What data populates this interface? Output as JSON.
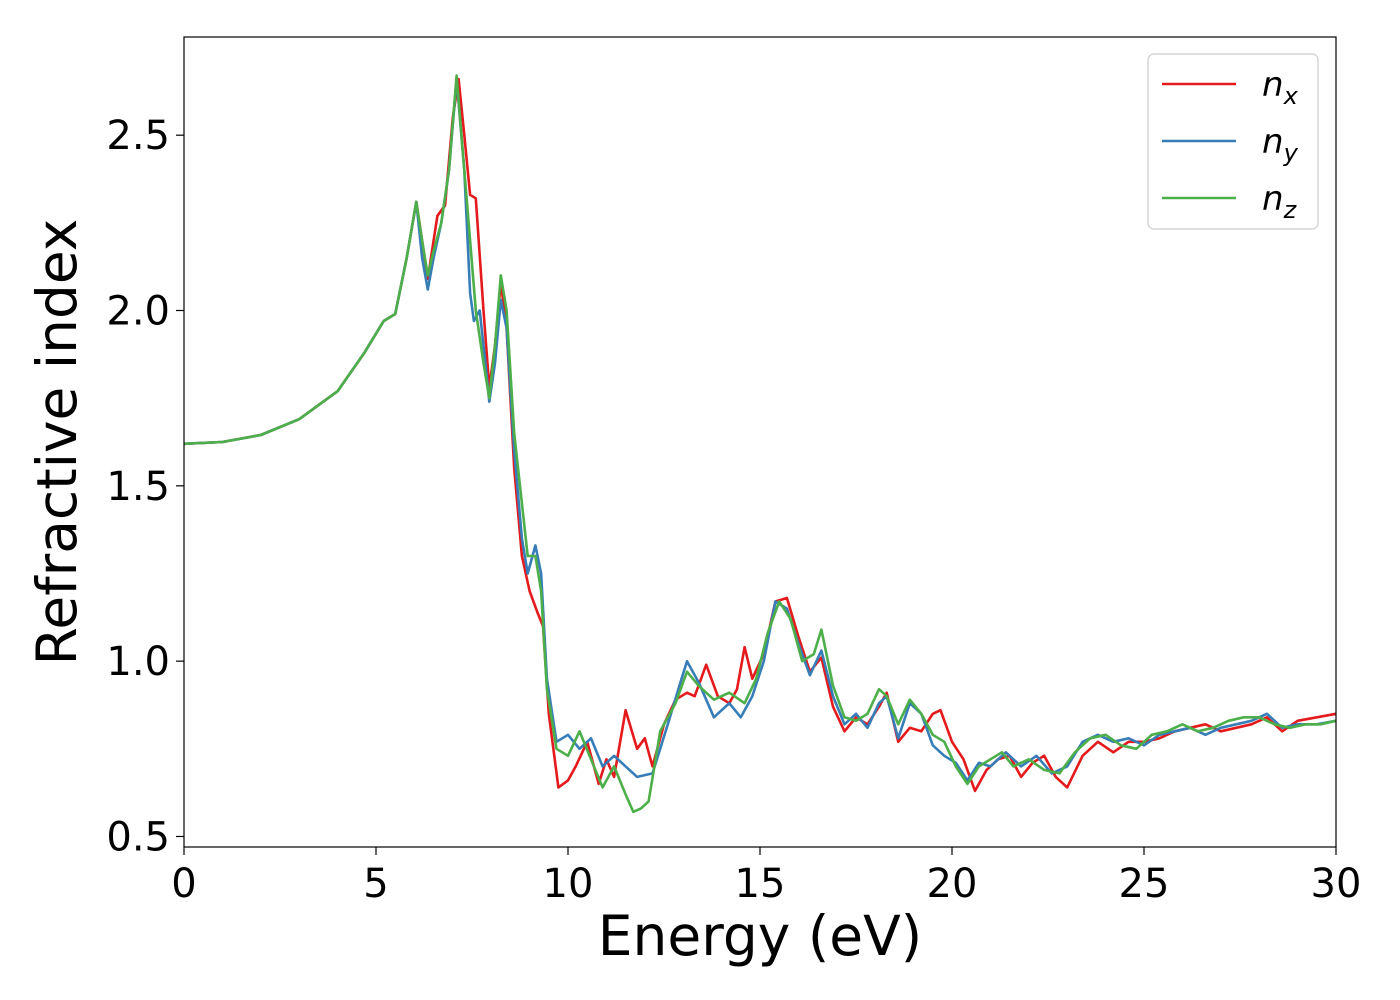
{
  "chart_data": {
    "type": "line",
    "xlabel": "Energy (eV)",
    "ylabel": "Refractive index",
    "xlim": [
      0,
      30
    ],
    "ylim": [
      0.47,
      2.78
    ],
    "xticks": [
      0,
      5,
      10,
      15,
      20,
      25,
      30
    ],
    "xtick_labels": [
      "0",
      "5",
      "10",
      "15",
      "20",
      "25",
      "30"
    ],
    "yticks": [
      0.5,
      1.0,
      1.5,
      2.0,
      2.5
    ],
    "ytick_labels": [
      "0.5",
      "1.0",
      "1.5",
      "2.0",
      "2.5"
    ],
    "grid": false,
    "legend_position": "top-right",
    "series": [
      {
        "name": "n",
        "sub": "x",
        "color": "#e41a1c",
        "points": [
          [
            0,
            1.62
          ],
          [
            1,
            1.625
          ],
          [
            2,
            1.645
          ],
          [
            3,
            1.69
          ],
          [
            4,
            1.77
          ],
          [
            4.7,
            1.88
          ],
          [
            5.2,
            1.97
          ],
          [
            5.5,
            1.99
          ],
          [
            5.8,
            2.15
          ],
          [
            6.05,
            2.31
          ],
          [
            6.2,
            2.2
          ],
          [
            6.35,
            2.09
          ],
          [
            6.5,
            2.2
          ],
          [
            6.6,
            2.27
          ],
          [
            6.8,
            2.3
          ],
          [
            7.0,
            2.55
          ],
          [
            7.15,
            2.66
          ],
          [
            7.3,
            2.5
          ],
          [
            7.45,
            2.33
          ],
          [
            7.6,
            2.32
          ],
          [
            7.8,
            2.0
          ],
          [
            7.95,
            1.78
          ],
          [
            8.1,
            1.9
          ],
          [
            8.25,
            2.08
          ],
          [
            8.4,
            1.95
          ],
          [
            8.6,
            1.55
          ],
          [
            8.8,
            1.3
          ],
          [
            9.0,
            1.2
          ],
          [
            9.2,
            1.14
          ],
          [
            9.35,
            1.1
          ],
          [
            9.5,
            0.85
          ],
          [
            9.75,
            0.64
          ],
          [
            10.0,
            0.66
          ],
          [
            10.2,
            0.7
          ],
          [
            10.5,
            0.77
          ],
          [
            10.8,
            0.65
          ],
          [
            11.0,
            0.72
          ],
          [
            11.2,
            0.67
          ],
          [
            11.5,
            0.86
          ],
          [
            11.8,
            0.75
          ],
          [
            12.0,
            0.78
          ],
          [
            12.2,
            0.7
          ],
          [
            12.5,
            0.82
          ],
          [
            12.8,
            0.89
          ],
          [
            13.1,
            0.91
          ],
          [
            13.3,
            0.9
          ],
          [
            13.6,
            0.99
          ],
          [
            13.9,
            0.9
          ],
          [
            14.2,
            0.88
          ],
          [
            14.4,
            0.92
          ],
          [
            14.6,
            1.04
          ],
          [
            14.8,
            0.95
          ],
          [
            15.1,
            1.02
          ],
          [
            15.4,
            1.17
          ],
          [
            15.7,
            1.18
          ],
          [
            16.0,
            1.07
          ],
          [
            16.3,
            0.97
          ],
          [
            16.6,
            1.01
          ],
          [
            16.9,
            0.87
          ],
          [
            17.2,
            0.8
          ],
          [
            17.5,
            0.84
          ],
          [
            17.8,
            0.82
          ],
          [
            18.1,
            0.87
          ],
          [
            18.3,
            0.91
          ],
          [
            18.6,
            0.77
          ],
          [
            18.9,
            0.81
          ],
          [
            19.2,
            0.8
          ],
          [
            19.5,
            0.85
          ],
          [
            19.7,
            0.86
          ],
          [
            20.0,
            0.77
          ],
          [
            20.3,
            0.72
          ],
          [
            20.6,
            0.63
          ],
          [
            20.9,
            0.69
          ],
          [
            21.2,
            0.72
          ],
          [
            21.5,
            0.73
          ],
          [
            21.8,
            0.67
          ],
          [
            22.1,
            0.71
          ],
          [
            22.4,
            0.73
          ],
          [
            22.7,
            0.67
          ],
          [
            23.0,
            0.64
          ],
          [
            23.4,
            0.73
          ],
          [
            23.8,
            0.77
          ],
          [
            24.2,
            0.74
          ],
          [
            24.6,
            0.77
          ],
          [
            25.0,
            0.77
          ],
          [
            25.4,
            0.78
          ],
          [
            25.8,
            0.8
          ],
          [
            26.2,
            0.81
          ],
          [
            26.6,
            0.82
          ],
          [
            27.0,
            0.8
          ],
          [
            27.4,
            0.81
          ],
          [
            27.8,
            0.82
          ],
          [
            28.2,
            0.84
          ],
          [
            28.6,
            0.8
          ],
          [
            29.0,
            0.83
          ],
          [
            29.5,
            0.84
          ],
          [
            30,
            0.85
          ]
        ]
      },
      {
        "name": "n",
        "sub": "y",
        "color": "#377eb8",
        "points": [
          [
            0,
            1.62
          ],
          [
            1,
            1.625
          ],
          [
            2,
            1.645
          ],
          [
            3,
            1.69
          ],
          [
            4,
            1.77
          ],
          [
            4.7,
            1.88
          ],
          [
            5.2,
            1.97
          ],
          [
            5.5,
            1.99
          ],
          [
            5.8,
            2.15
          ],
          [
            6.05,
            2.31
          ],
          [
            6.2,
            2.15
          ],
          [
            6.35,
            2.06
          ],
          [
            6.5,
            2.15
          ],
          [
            6.7,
            2.25
          ],
          [
            6.9,
            2.4
          ],
          [
            7.1,
            2.66
          ],
          [
            7.3,
            2.4
          ],
          [
            7.45,
            2.05
          ],
          [
            7.55,
            1.97
          ],
          [
            7.7,
            2.0
          ],
          [
            7.85,
            1.85
          ],
          [
            7.95,
            1.74
          ],
          [
            8.1,
            1.85
          ],
          [
            8.25,
            2.03
          ],
          [
            8.4,
            1.95
          ],
          [
            8.6,
            1.6
          ],
          [
            8.8,
            1.35
          ],
          [
            8.95,
            1.25
          ],
          [
            9.15,
            1.33
          ],
          [
            9.3,
            1.25
          ],
          [
            9.45,
            0.95
          ],
          [
            9.7,
            0.77
          ],
          [
            10.0,
            0.79
          ],
          [
            10.3,
            0.75
          ],
          [
            10.6,
            0.78
          ],
          [
            10.9,
            0.7
          ],
          [
            11.2,
            0.73
          ],
          [
            11.5,
            0.7
          ],
          [
            11.8,
            0.67
          ],
          [
            12.2,
            0.68
          ],
          [
            12.6,
            0.82
          ],
          [
            12.9,
            0.93
          ],
          [
            13.1,
            1.0
          ],
          [
            13.4,
            0.94
          ],
          [
            13.8,
            0.84
          ],
          [
            14.2,
            0.88
          ],
          [
            14.5,
            0.84
          ],
          [
            14.8,
            0.9
          ],
          [
            15.1,
            1.0
          ],
          [
            15.4,
            1.17
          ],
          [
            15.7,
            1.15
          ],
          [
            16.0,
            1.05
          ],
          [
            16.3,
            0.96
          ],
          [
            16.6,
            1.03
          ],
          [
            16.9,
            0.9
          ],
          [
            17.2,
            0.82
          ],
          [
            17.5,
            0.85
          ],
          [
            17.8,
            0.81
          ],
          [
            18.1,
            0.88
          ],
          [
            18.3,
            0.9
          ],
          [
            18.6,
            0.78
          ],
          [
            18.9,
            0.88
          ],
          [
            19.2,
            0.85
          ],
          [
            19.5,
            0.76
          ],
          [
            19.8,
            0.73
          ],
          [
            20.1,
            0.71
          ],
          [
            20.4,
            0.66
          ],
          [
            20.7,
            0.71
          ],
          [
            21.0,
            0.7
          ],
          [
            21.4,
            0.74
          ],
          [
            21.8,
            0.7
          ],
          [
            22.2,
            0.73
          ],
          [
            22.6,
            0.68
          ],
          [
            23.0,
            0.7
          ],
          [
            23.4,
            0.77
          ],
          [
            23.8,
            0.79
          ],
          [
            24.2,
            0.77
          ],
          [
            24.6,
            0.78
          ],
          [
            25.0,
            0.76
          ],
          [
            25.4,
            0.79
          ],
          [
            25.8,
            0.8
          ],
          [
            26.2,
            0.81
          ],
          [
            26.6,
            0.79
          ],
          [
            27.0,
            0.81
          ],
          [
            27.4,
            0.82
          ],
          [
            27.8,
            0.83
          ],
          [
            28.2,
            0.85
          ],
          [
            28.6,
            0.81
          ],
          [
            29.0,
            0.82
          ],
          [
            29.5,
            0.82
          ],
          [
            30,
            0.83
          ]
        ]
      },
      {
        "name": "n",
        "sub": "z",
        "color": "#4daf4a",
        "points": [
          [
            0,
            1.62
          ],
          [
            1,
            1.625
          ],
          [
            2,
            1.645
          ],
          [
            3,
            1.69
          ],
          [
            4,
            1.77
          ],
          [
            4.7,
            1.88
          ],
          [
            5.2,
            1.97
          ],
          [
            5.5,
            1.99
          ],
          [
            5.8,
            2.15
          ],
          [
            6.05,
            2.31
          ],
          [
            6.2,
            2.2
          ],
          [
            6.35,
            2.1
          ],
          [
            6.5,
            2.17
          ],
          [
            6.7,
            2.25
          ],
          [
            6.9,
            2.4
          ],
          [
            7.1,
            2.67
          ],
          [
            7.3,
            2.4
          ],
          [
            7.45,
            2.2
          ],
          [
            7.6,
            2.0
          ],
          [
            7.8,
            1.85
          ],
          [
            7.95,
            1.75
          ],
          [
            8.1,
            1.9
          ],
          [
            8.25,
            2.1
          ],
          [
            8.4,
            2.0
          ],
          [
            8.6,
            1.65
          ],
          [
            8.8,
            1.45
          ],
          [
            8.95,
            1.3
          ],
          [
            9.15,
            1.3
          ],
          [
            9.3,
            1.2
          ],
          [
            9.45,
            0.92
          ],
          [
            9.7,
            0.75
          ],
          [
            10.0,
            0.73
          ],
          [
            10.3,
            0.8
          ],
          [
            10.6,
            0.72
          ],
          [
            10.9,
            0.64
          ],
          [
            11.2,
            0.7
          ],
          [
            11.5,
            0.62
          ],
          [
            11.7,
            0.57
          ],
          [
            11.9,
            0.58
          ],
          [
            12.1,
            0.6
          ],
          [
            12.4,
            0.8
          ],
          [
            12.8,
            0.88
          ],
          [
            13.1,
            0.97
          ],
          [
            13.4,
            0.93
          ],
          [
            13.8,
            0.89
          ],
          [
            14.2,
            0.91
          ],
          [
            14.6,
            0.88
          ],
          [
            14.9,
            0.95
          ],
          [
            15.2,
            1.08
          ],
          [
            15.5,
            1.17
          ],
          [
            15.8,
            1.12
          ],
          [
            16.1,
            1.0
          ],
          [
            16.4,
            1.02
          ],
          [
            16.6,
            1.09
          ],
          [
            16.9,
            0.93
          ],
          [
            17.2,
            0.84
          ],
          [
            17.5,
            0.83
          ],
          [
            17.8,
            0.85
          ],
          [
            18.1,
            0.92
          ],
          [
            18.3,
            0.9
          ],
          [
            18.6,
            0.82
          ],
          [
            18.9,
            0.89
          ],
          [
            19.2,
            0.85
          ],
          [
            19.5,
            0.79
          ],
          [
            19.8,
            0.77
          ],
          [
            20.1,
            0.7
          ],
          [
            20.4,
            0.65
          ],
          [
            20.7,
            0.7
          ],
          [
            21.0,
            0.72
          ],
          [
            21.3,
            0.74
          ],
          [
            21.6,
            0.7
          ],
          [
            22.0,
            0.72
          ],
          [
            22.4,
            0.69
          ],
          [
            22.8,
            0.68
          ],
          [
            23.2,
            0.74
          ],
          [
            23.6,
            0.78
          ],
          [
            24.0,
            0.79
          ],
          [
            24.4,
            0.76
          ],
          [
            24.8,
            0.75
          ],
          [
            25.2,
            0.79
          ],
          [
            25.6,
            0.8
          ],
          [
            26.0,
            0.82
          ],
          [
            26.4,
            0.8
          ],
          [
            26.8,
            0.81
          ],
          [
            27.2,
            0.83
          ],
          [
            27.6,
            0.84
          ],
          [
            28.0,
            0.84
          ],
          [
            28.4,
            0.82
          ],
          [
            28.8,
            0.81
          ],
          [
            29.2,
            0.82
          ],
          [
            29.6,
            0.82
          ],
          [
            30,
            0.83
          ]
        ]
      }
    ]
  }
}
